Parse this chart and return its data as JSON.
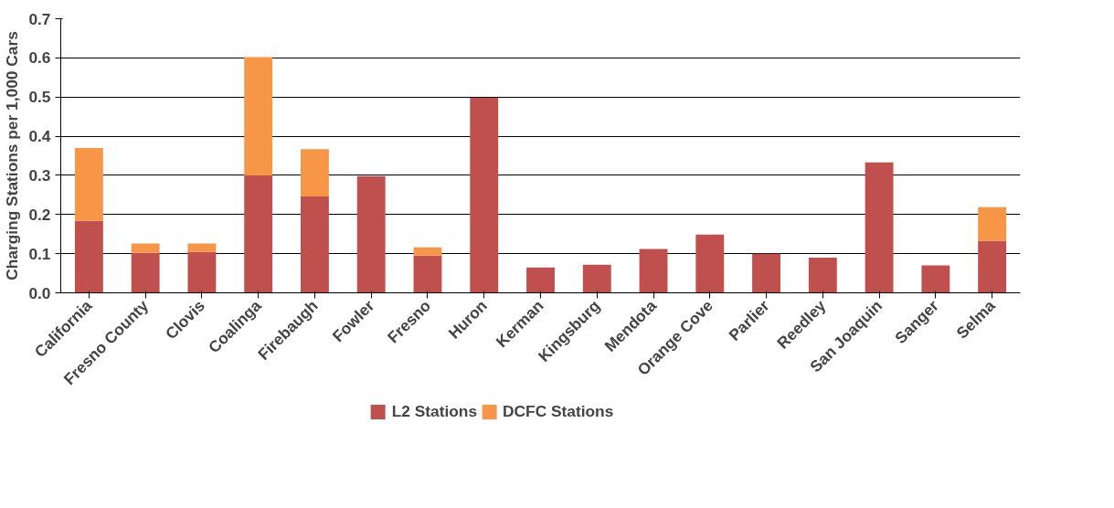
{
  "chart_data": {
    "type": "bar",
    "stacked": true,
    "ylabel": "Charging Stations per 1,000 Cars",
    "categories": [
      "California",
      "Fresno County",
      "Clovis",
      "Coalinga",
      "Firebaugh",
      "Fowler",
      "Fresno",
      "Huron",
      "Kerman",
      "Kingsburg",
      "Mendota",
      "Orange Cove",
      "Parlier",
      "Reedley",
      "San Joaquin",
      "Sanger",
      "Selma"
    ],
    "series": [
      {
        "name": "L2 Stations",
        "color": "#c0504d",
        "values": [
          0.184,
          0.102,
          0.105,
          0.3,
          0.246,
          0.298,
          0.095,
          0.498,
          0.065,
          0.072,
          0.112,
          0.149,
          0.1,
          0.09,
          0.333,
          0.07,
          0.133
        ]
      },
      {
        "name": "DCFC Stations",
        "color": "#f79646",
        "values": [
          0.186,
          0.024,
          0.021,
          0.302,
          0.121,
          0,
          0.021,
          0,
          0,
          0,
          0,
          0,
          0,
          0,
          0,
          0,
          0.086
        ]
      }
    ],
    "ylim": [
      0,
      0.7
    ],
    "yticks": [
      "0.0",
      0.1,
      0.2,
      0.3,
      0.4,
      0.5,
      0.6,
      0.7
    ],
    "grid": "y",
    "legend": "bottom"
  }
}
